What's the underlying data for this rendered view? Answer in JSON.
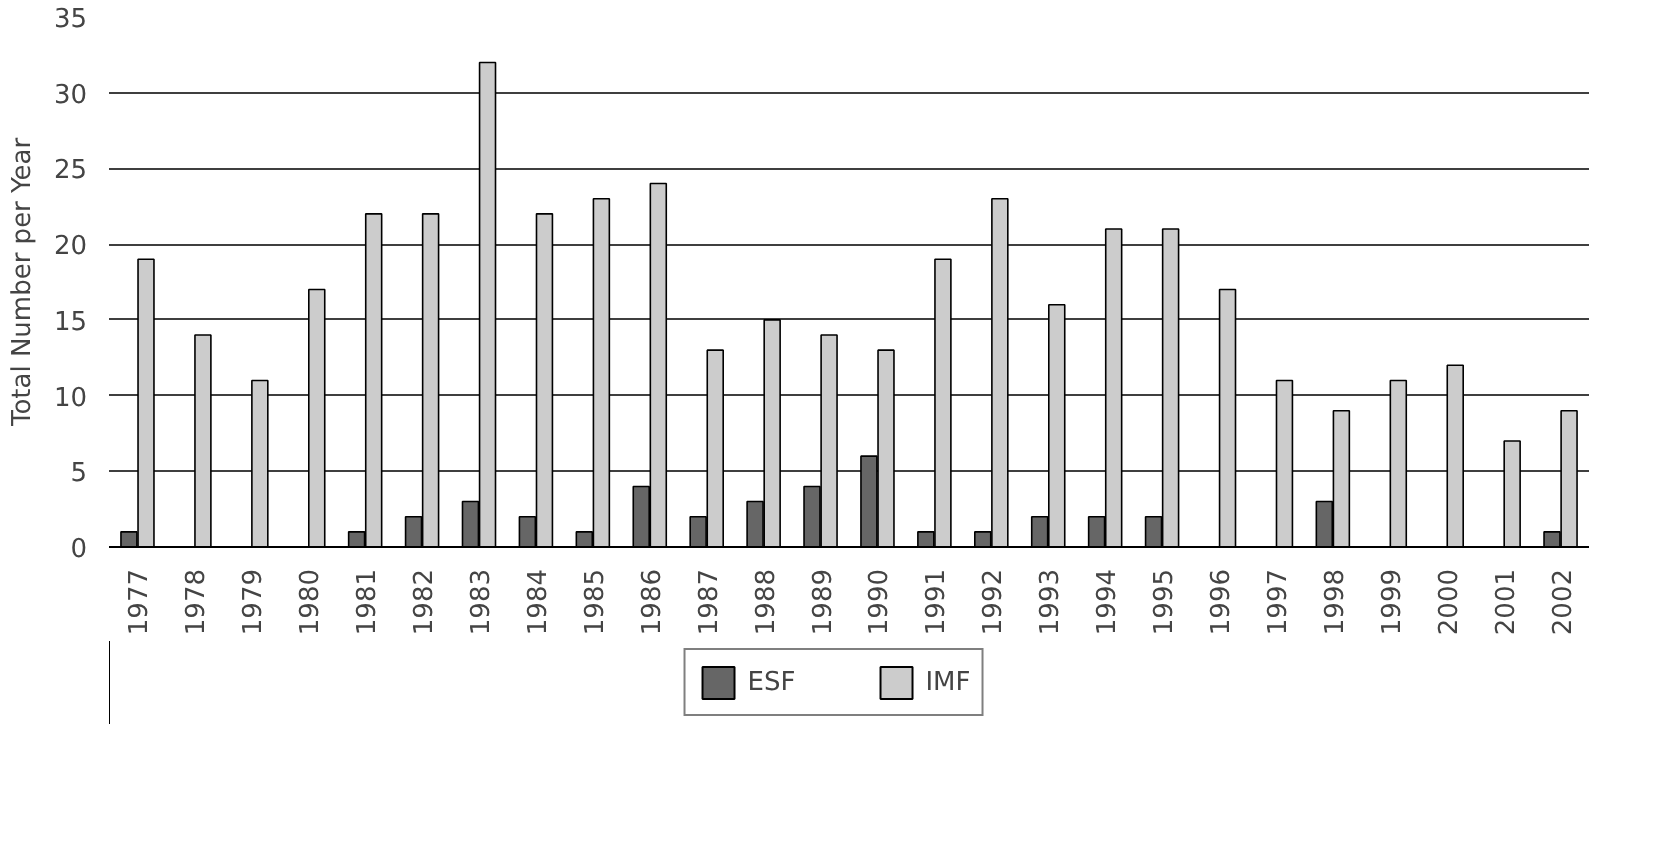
{
  "chart_data": {
    "type": "bar",
    "ylabel": "Total Number per Year",
    "categories": [
      "1977",
      "1978",
      "1979",
      "1980",
      "1981",
      "1982",
      "1983",
      "1984",
      "1985",
      "1986",
      "1987",
      "1988",
      "1989",
      "1990",
      "1991",
      "1992",
      "1993",
      "1994",
      "1995",
      "1996",
      "1997",
      "1998",
      "1999",
      "2000",
      "2001",
      "2002"
    ],
    "series": [
      {
        "name": "ESF",
        "color": "#666666",
        "values": [
          1,
          0,
          0,
          0,
          1,
          2,
          3,
          2,
          1,
          4,
          2,
          3,
          4,
          6,
          1,
          1,
          2,
          2,
          2,
          0,
          0,
          3,
          0,
          0,
          0,
          1
        ]
      },
      {
        "name": "IMF",
        "color": "#cccccc",
        "values": [
          19,
          14,
          11,
          17,
          22,
          22,
          32,
          22,
          23,
          24,
          13,
          15,
          14,
          13,
          19,
          23,
          16,
          21,
          21,
          17,
          11,
          9,
          11,
          12,
          7,
          9
        ]
      }
    ],
    "ylim": [
      0,
      35
    ],
    "yticks": [
      0,
      5,
      10,
      15,
      20,
      25,
      30,
      35
    ],
    "grid": "y",
    "legend": "bottom"
  }
}
